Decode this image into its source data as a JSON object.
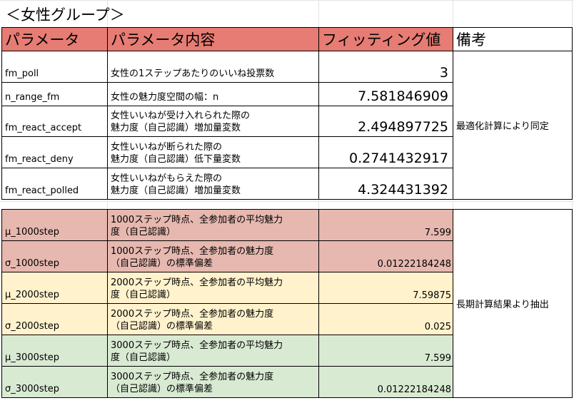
{
  "title": "＜女性グループ＞",
  "headers": {
    "param": "パラメータ",
    "content": "パラメータ内容",
    "fitting": "フィッティング値",
    "note": "備考"
  },
  "top_rows": [
    {
      "param": "fm_poll",
      "desc": [
        "女性の1ステップあたりのいいね投票数"
      ],
      "value": "3"
    },
    {
      "param": "n_range_fm",
      "desc": [
        "女性の魅力度空間の幅：n"
      ],
      "value": "7.581846909"
    },
    {
      "param": "fm_react_accept",
      "desc": [
        "女性いいねが受け入れられた際の",
        "魅力度（自己認識）増加量変数"
      ],
      "value": "2.494897725"
    },
    {
      "param": "fm_react_deny",
      "desc": [
        "女性いいねが断られた際の",
        "魅力度（自己認識）低下量変数"
      ],
      "value": "0.2741432917"
    },
    {
      "param": "fm_react_polled",
      "desc": [
        "女性いいねがもらえた際の",
        "魅力度（自己認識）増加量変数"
      ],
      "value": "4.324431392"
    }
  ],
  "top_note": "最適化計算により同定",
  "bottom_rows": [
    {
      "param": "μ_1000step",
      "desc": [
        "1000ステップ時点、全参加者の平均魅力",
        "度（自己認識）"
      ],
      "value": "7.599"
    },
    {
      "param": "σ_1000step",
      "desc": [
        "1000ステップ時点、全参加者の魅力度",
        "（自己認識）の標準偏差"
      ],
      "value": "0.01222184248"
    },
    {
      "param": "μ_2000step",
      "desc": [
        "2000ステップ時点、全参加者の平均魅力",
        "度（自己認識）"
      ],
      "value": "7.59875"
    },
    {
      "param": "σ_2000step",
      "desc": [
        "2000ステップ時点、全参加者の魅力度",
        "（自己認識）の標準偏差"
      ],
      "value": "0.025"
    },
    {
      "param": "μ_3000step",
      "desc": [
        "3000ステップ時点、全参加者の平均魅力",
        "度（自己認識）"
      ],
      "value": "7.599"
    },
    {
      "param": "σ_3000step",
      "desc": [
        "3000ステップ時点、全参加者の魅力度",
        "（自己認識）の標準偏差"
      ],
      "value": "0.01222184248"
    }
  ],
  "bottom_note": "長期計算結果より抽出",
  "colors": {
    "header": "#e67c73",
    "row_1000": "#e6b8af",
    "row_2000": "#fff2cc",
    "row_3000": "#d9ead3"
  }
}
